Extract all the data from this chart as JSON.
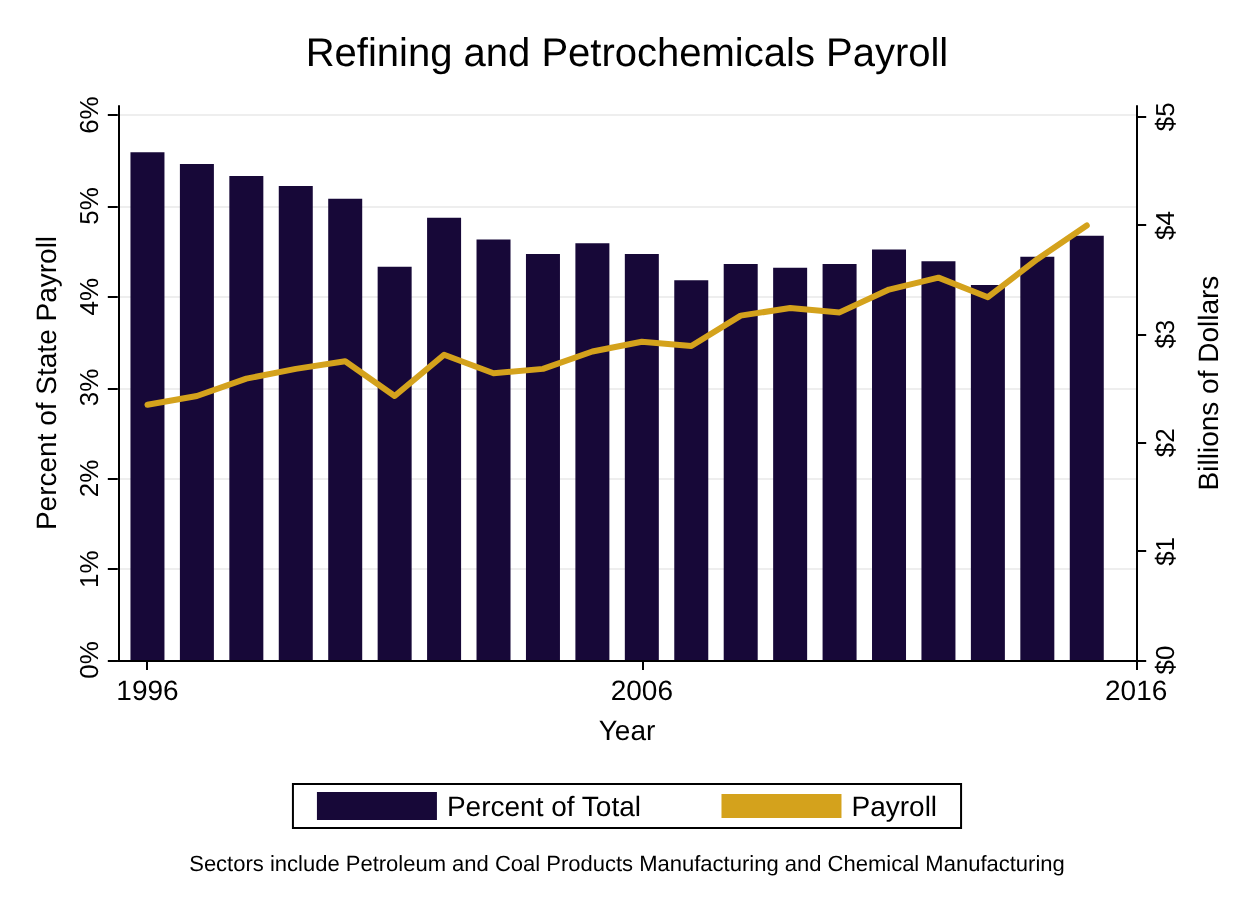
{
  "chart_data": {
    "type": "bar",
    "title": "Refining and Petrochemicals Payroll",
    "xlabel": "Year",
    "ylabel": "Percent of State Payroll",
    "y2label": "Billions of Dollars",
    "x": [
      1996,
      1997,
      1998,
      1999,
      2000,
      2001,
      2002,
      2003,
      2004,
      2005,
      2006,
      2007,
      2008,
      2009,
      2010,
      2011,
      2012,
      2013,
      2014,
      2015
    ],
    "series": [
      {
        "name": "Percent of Total",
        "color": "#170838",
        "values": [
          5.59,
          5.46,
          5.33,
          5.22,
          5.08,
          4.33,
          4.87,
          4.63,
          4.47,
          4.59,
          4.47,
          4.18,
          4.36,
          4.32,
          4.36,
          4.52,
          4.39,
          4.13,
          4.44,
          4.67
        ]
      },
      {
        "name": "Payroll",
        "type": "line",
        "axis": "y2",
        "color": "#d4a21c",
        "values": [
          2.35,
          2.43,
          2.59,
          2.68,
          2.75,
          2.43,
          2.81,
          2.64,
          2.68,
          2.84,
          2.93,
          2.89,
          3.17,
          3.24,
          3.2,
          3.41,
          3.52,
          3.34,
          3.69,
          4.0
        ]
      }
    ],
    "xlim": [
      1995.4,
      2016
    ],
    "xticks": [
      1996,
      2006,
      2016
    ],
    "ylim": [
      0,
      6.1
    ],
    "yticks": [
      {
        "value": 0,
        "label": "0%"
      },
      {
        "value": 1,
        "label": "1%"
      },
      {
        "value": 2,
        "label": "2%"
      },
      {
        "value": 3,
        "label": "3%"
      },
      {
        "value": 4,
        "label": "4%"
      },
      {
        "value": 5,
        "label": "5%"
      },
      {
        "value": 6,
        "label": "6%"
      }
    ],
    "y2lim": [
      0,
      5.1
    ],
    "y2ticks": [
      {
        "value": 0,
        "label": "$0"
      },
      {
        "value": 1,
        "label": "$1"
      },
      {
        "value": 2,
        "label": "$2"
      },
      {
        "value": 3,
        "label": "$3"
      },
      {
        "value": 4,
        "label": "$4"
      },
      {
        "value": 5,
        "label": "$5"
      }
    ],
    "grid": "y",
    "legend": "bottom",
    "marker": "none",
    "line_style": "solid",
    "annotations": [
      "Sectors include Petroleum and Coal Products Manufacturing and Chemical Manufacturing"
    ]
  }
}
